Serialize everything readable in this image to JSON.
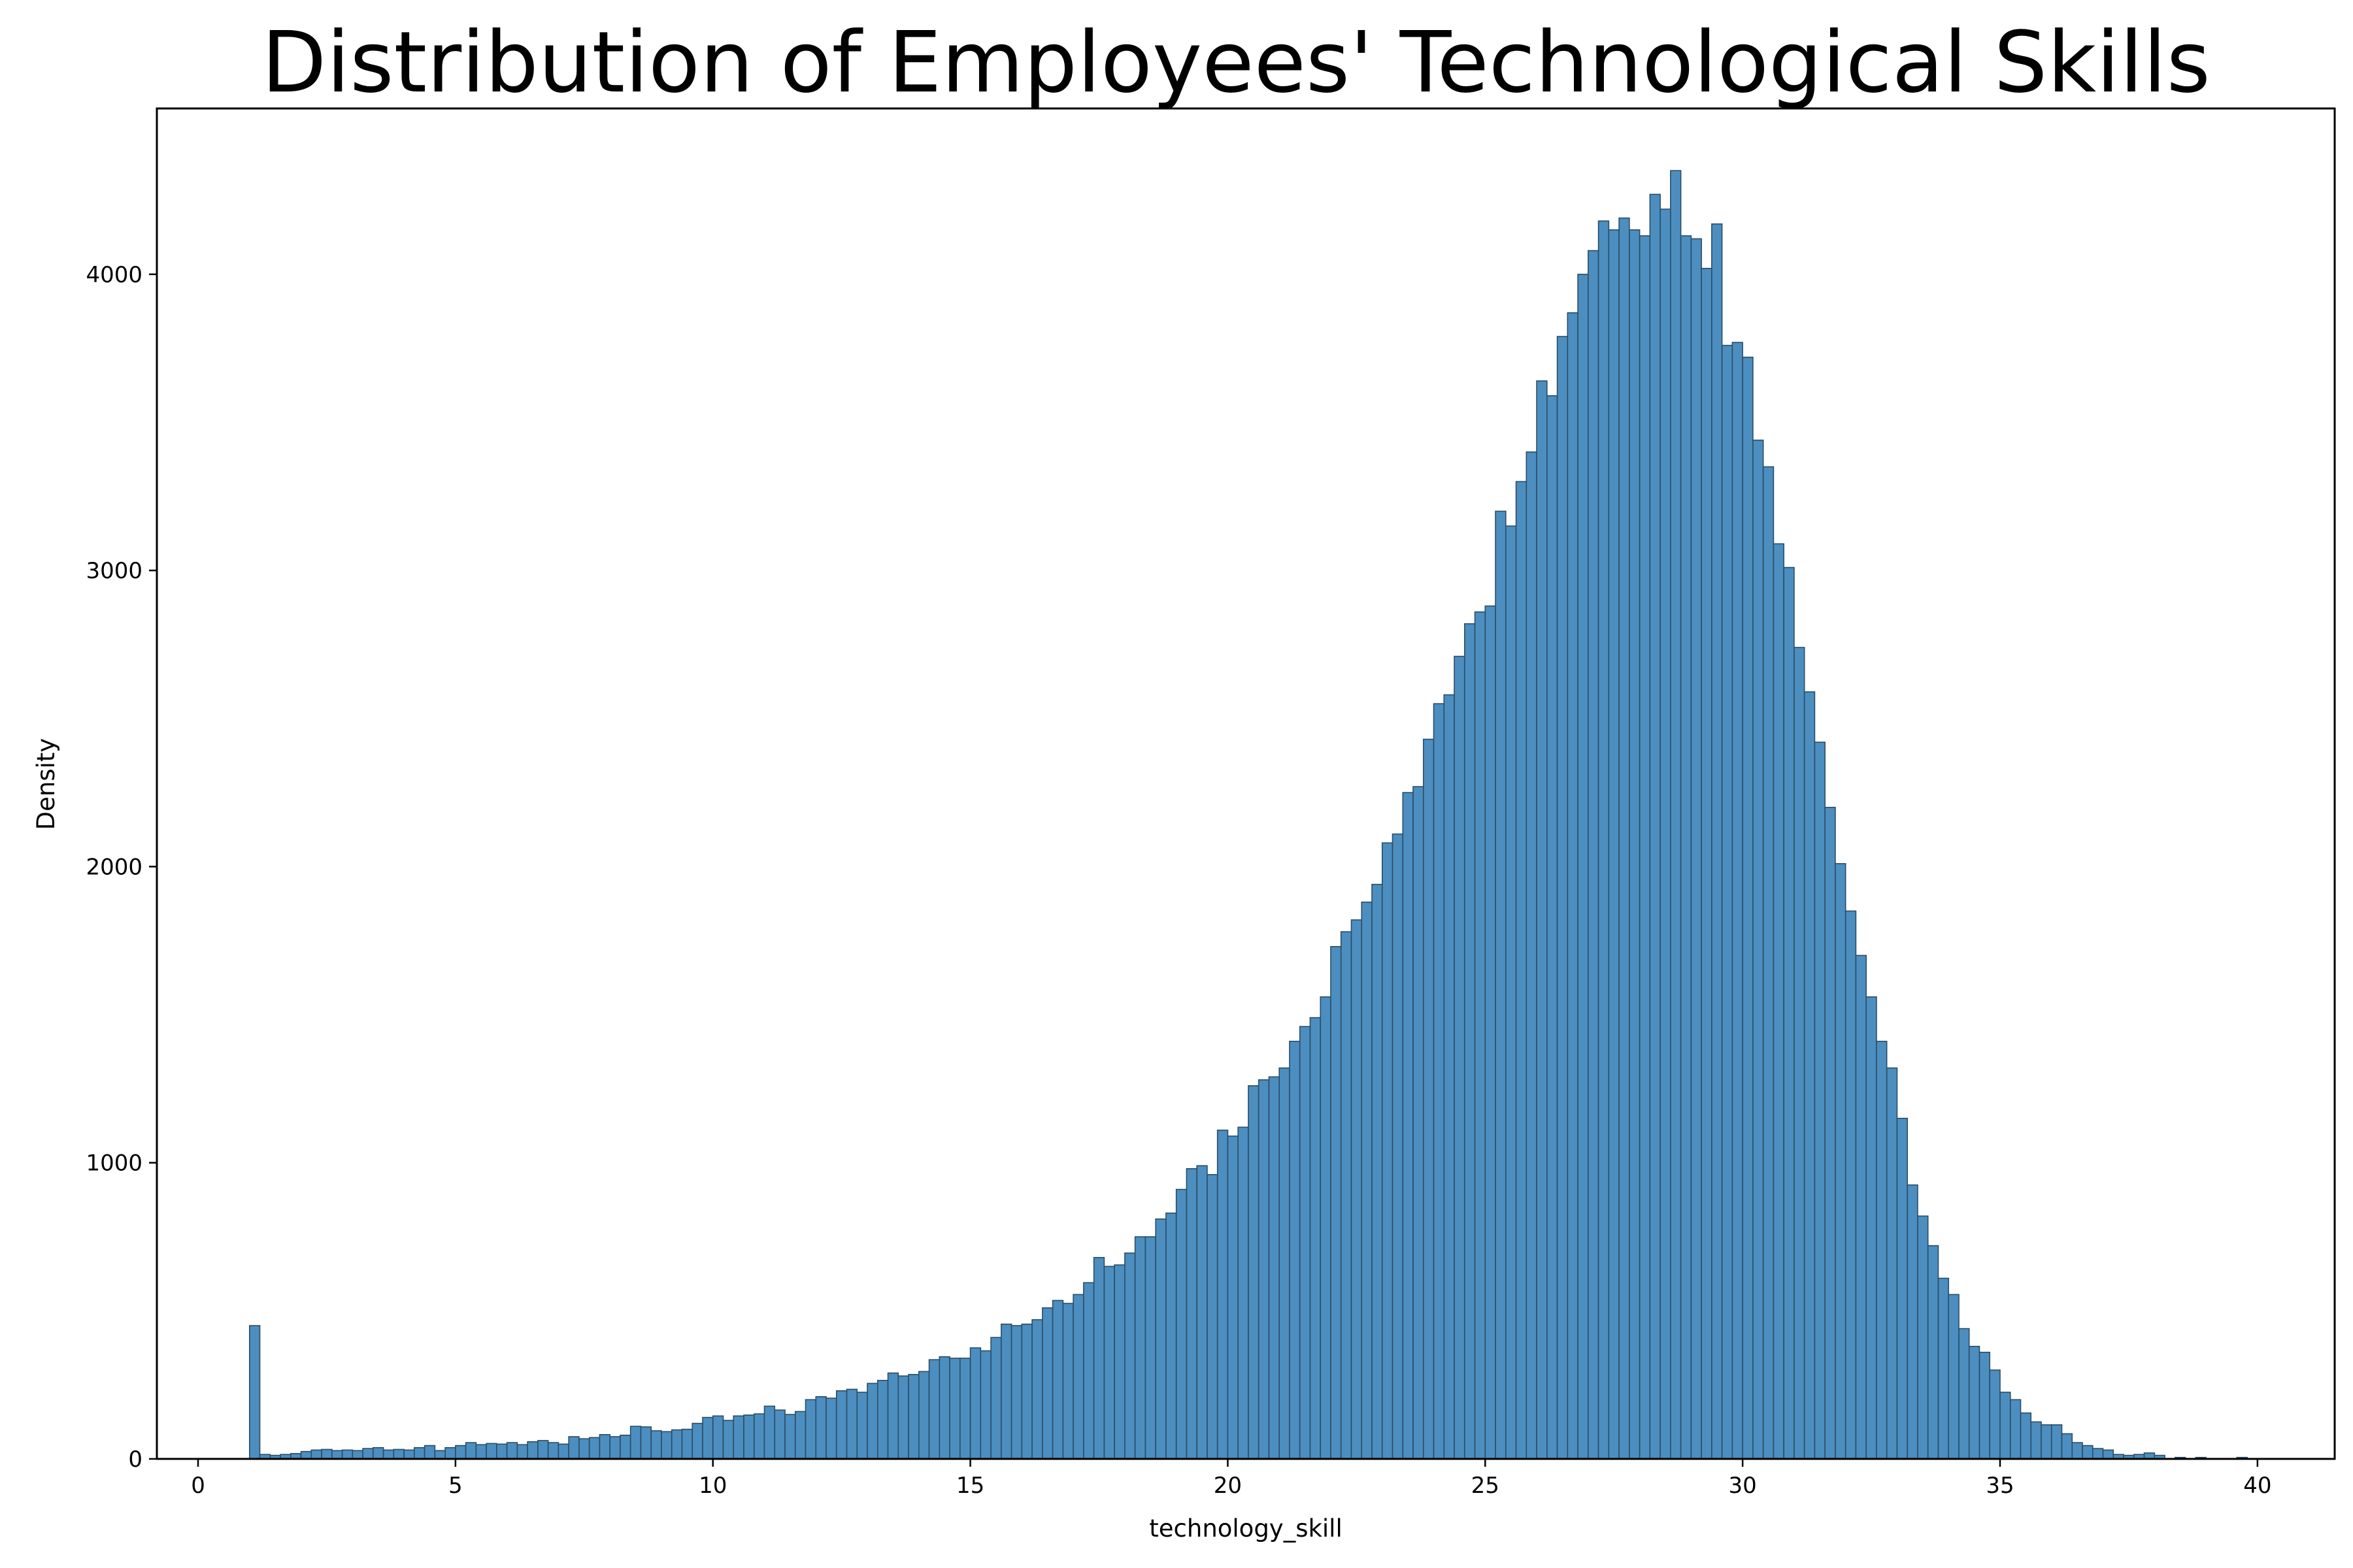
{
  "chart_data": {
    "type": "bar",
    "subtype": "histogram",
    "title": "Distribution of Employees' Technological Skills",
    "xlabel": "technology_skill",
    "ylabel": "Density",
    "xlim": [
      -0.8,
      41.5
    ],
    "ylim": [
      0,
      4560
    ],
    "x_ticks": [
      0,
      5,
      10,
      15,
      20,
      25,
      30,
      35,
      40
    ],
    "y_ticks": [
      0,
      1000,
      2000,
      3000,
      4000
    ],
    "bin_start": 1.0,
    "bin_width": 0.2,
    "grid": false,
    "bar_color": "#4c8ebf",
    "edge_color": "#2b4d66",
    "series": [
      {
        "name": "technology_skill",
        "values": [
          450,
          15,
          12,
          15,
          18,
          25,
          30,
          32,
          28,
          30,
          28,
          35,
          38,
          30,
          32,
          30,
          38,
          45,
          28,
          38,
          45,
          55,
          48,
          52,
          50,
          55,
          48,
          58,
          62,
          55,
          50,
          75,
          68,
          72,
          82,
          75,
          80,
          110,
          108,
          95,
          92,
          98,
          100,
          120,
          140,
          145,
          130,
          145,
          148,
          152,
          178,
          165,
          150,
          160,
          200,
          210,
          205,
          230,
          235,
          225,
          255,
          265,
          290,
          280,
          285,
          295,
          335,
          345,
          340,
          340,
          375,
          365,
          410,
          455,
          450,
          455,
          470,
          510,
          535,
          525,
          555,
          595,
          680,
          650,
          655,
          695,
          750,
          750,
          810,
          830,
          910,
          980,
          990,
          960,
          1110,
          1090,
          1120,
          1260,
          1280,
          1290,
          1320,
          1410,
          1460,
          1490,
          1560,
          1730,
          1780,
          1820,
          1880,
          1940,
          2080,
          2110,
          2250,
          2270,
          2430,
          2550,
          2580,
          2710,
          2820,
          2860,
          2880,
          3200,
          3150,
          3300,
          3400,
          3640,
          3590,
          3790,
          3870,
          4000,
          4080,
          4180,
          4150,
          4190,
          4150,
          4130,
          4270,
          4220,
          4350,
          4130,
          4120,
          4020,
          4170,
          3760,
          3770,
          3720,
          3440,
          3350,
          3090,
          3010,
          2740,
          2590,
          2420,
          2200,
          2010,
          1850,
          1700,
          1560,
          1410,
          1320,
          1150,
          925,
          820,
          720,
          610,
          555,
          440,
          380,
          360,
          300,
          225,
          200,
          155,
          125,
          115,
          115,
          85,
          55,
          45,
          35,
          30,
          15,
          12,
          15,
          20,
          12,
          0,
          5,
          0,
          5,
          0,
          0,
          0,
          5,
          0,
          0,
          0,
          0,
          0,
          0,
          0,
          0,
          0,
          0,
          0,
          0,
          0,
          0,
          0,
          0,
          0,
          0,
          0
        ]
      }
    ]
  }
}
